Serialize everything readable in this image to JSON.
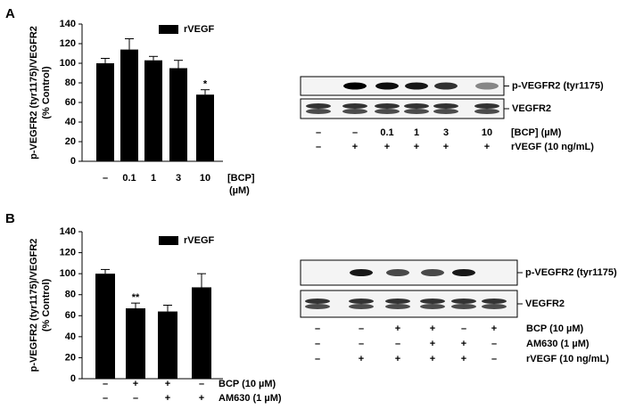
{
  "panel_labels": [
    "A",
    "B"
  ],
  "chart_data": [
    {
      "type": "bar",
      "ylabel": [
        "p-VEGFR2 (tyr1175)/VEGFR2",
        "(% Control)"
      ],
      "categories": [
        "–",
        "0.1",
        "1",
        "3",
        "10"
      ],
      "xlabel": [
        "[BCP]",
        "(µM)"
      ],
      "series": [
        {
          "name": "rVEGF",
          "color": "#000000",
          "values": [
            100,
            114,
            103,
            95,
            68
          ],
          "errors": [
            5,
            11,
            4,
            8,
            5
          ]
        }
      ],
      "significance": [
        null,
        null,
        null,
        null,
        "*"
      ],
      "ylim": [
        0,
        140
      ],
      "yticks": [
        0,
        20,
        40,
        60,
        80,
        100,
        120,
        140
      ]
    },
    {
      "type": "bar",
      "ylabel": [
        "p-VEGFR2 (tyr1175)/VEGFR2",
        "(% Control)"
      ],
      "category_rows": [
        {
          "label": "BCP (10 µM)",
          "values": [
            "–",
            "+",
            "+",
            "–"
          ]
        },
        {
          "label": "AM630 (1 µM)",
          "values": [
            "–",
            "–",
            "+",
            "+"
          ]
        }
      ],
      "series": [
        {
          "name": "rVEGF",
          "color": "#000000",
          "values": [
            100,
            67,
            64,
            87
          ],
          "errors": [
            4,
            5,
            6,
            13
          ]
        }
      ],
      "significance": [
        null,
        "**",
        null,
        null
      ],
      "ylim": [
        0,
        140
      ],
      "yticks": [
        0,
        20,
        40,
        60,
        80,
        100,
        120,
        140
      ]
    }
  ],
  "blots": [
    {
      "bands": [
        "p-VEGFR2 (tyr1175)",
        "VEGFR2"
      ],
      "rows": [
        {
          "label": "[BCP] (µM)",
          "values": [
            "–",
            "–",
            "0.1",
            "1",
            "3",
            "10"
          ]
        },
        {
          "label": "rVEGF (10 ng/mL)",
          "values": [
            "–",
            "+",
            "+",
            "+",
            "+",
            "+"
          ]
        }
      ]
    },
    {
      "bands": [
        "p-VEGFR2 (tyr1175)",
        "VEGFR2"
      ],
      "rows": [
        {
          "label": "BCP (10 µM)",
          "values": [
            "–",
            "–",
            "+",
            "+",
            "–",
            "+"
          ]
        },
        {
          "label": "AM630 (1 µM)",
          "values": [
            "–",
            "–",
            "–",
            "+",
            "+",
            "–"
          ]
        },
        {
          "label": "rVEGF (10 ng/mL)",
          "values": [
            "–",
            "+",
            "+",
            "+",
            "+",
            "–"
          ]
        }
      ]
    }
  ]
}
